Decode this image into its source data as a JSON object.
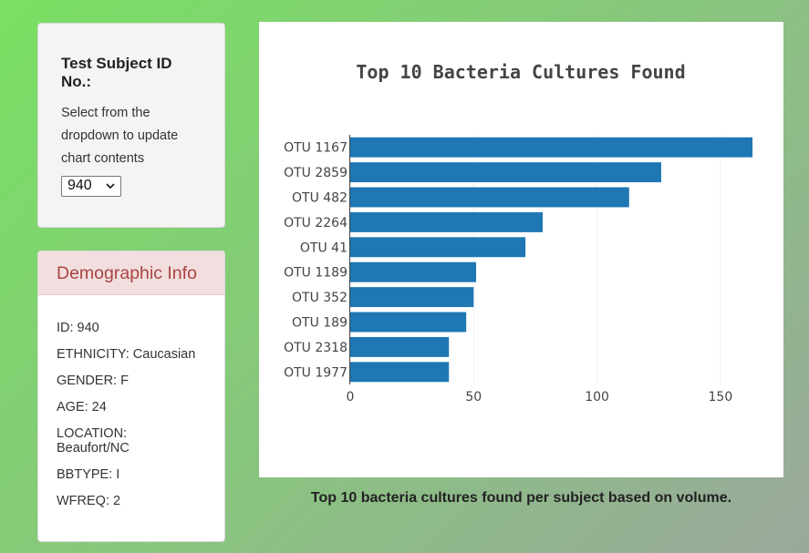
{
  "selector": {
    "title": "Test Subject ID No.:",
    "help": "Select from the dropdown to update chart contents",
    "selected": "940"
  },
  "demographics": {
    "title": "Demographic Info",
    "rows": [
      "ID: 940",
      "ETHNICITY: Caucasian",
      "GENDER: F",
      "AGE: 24",
      "LOCATION: Beaufort/NC",
      "BBTYPE: I",
      "WFREQ: 2"
    ]
  },
  "chart_data": {
    "type": "bar",
    "orientation": "horizontal",
    "title": "Top 10 Bacteria Cultures Found",
    "categories": [
      "OTU 1167",
      "OTU 2859",
      "OTU 482",
      "OTU 2264",
      "OTU 41",
      "OTU 1189",
      "OTU 352",
      "OTU 189",
      "OTU 2318",
      "OTU 1977"
    ],
    "values": [
      163,
      126,
      113,
      78,
      71,
      51,
      50,
      47,
      40,
      40
    ],
    "xlim": [
      0,
      170
    ],
    "xticks": [
      0,
      50,
      100,
      150
    ],
    "grid": true,
    "bar_color": "#1f77b4"
  },
  "caption": "Top 10 bacteria cultures found per subject based on volume."
}
